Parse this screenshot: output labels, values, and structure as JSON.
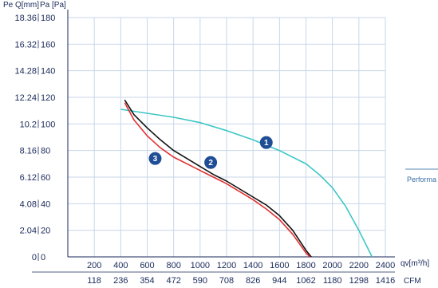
{
  "chart_data": {
    "type": "line",
    "title": "",
    "y_axis_title_left": "Pe Q[mm]",
    "y_axis_title_right": "Pa [Pa]",
    "x_unit_label": "qv[m³/h]",
    "x_secondary_unit_label": "CFM",
    "x_ticks_primary": [
      "200",
      "400",
      "600",
      "800",
      "1000",
      "1200",
      "1400",
      "1600",
      "1800",
      "2000",
      "2200",
      "2400"
    ],
    "x_ticks_secondary": [
      "118",
      "236",
      "354",
      "472",
      "590",
      "708",
      "826",
      "944",
      "1062",
      "1180",
      "1298",
      "1416"
    ],
    "y_ticks_mm": [
      "18.36",
      "16.32",
      "14.28",
      "12.24",
      "10.2",
      "8.16",
      "6.12",
      "4.08",
      "2.04",
      "0"
    ],
    "y_ticks_pa": [
      "180",
      "160",
      "140",
      "120",
      "100",
      "80",
      "60",
      "40",
      "20",
      "0"
    ],
    "xlim": [
      0,
      2400
    ],
    "ylim": [
      0,
      180
    ],
    "grid": true,
    "legend_partial_text": "Performa",
    "series": [
      {
        "marker": "1",
        "color": "#3cc6c6",
        "x": [
          400,
          600,
          800,
          1000,
          1200,
          1400,
          1600,
          1800,
          1900,
          2000,
          2100,
          2200,
          2300
        ],
        "y": [
          111,
          108,
          105,
          101,
          95,
          88,
          80,
          70,
          62,
          52,
          38,
          20,
          0
        ]
      },
      {
        "marker": "2",
        "color": "#111111",
        "x": [
          430,
          500,
          600,
          700,
          800,
          900,
          1000,
          1100,
          1200,
          1300,
          1400,
          1500,
          1600,
          1700,
          1800,
          1840
        ],
        "y": [
          118,
          107,
          97,
          88,
          80,
          74,
          68,
          62,
          57,
          51,
          45,
          39,
          31,
          20,
          5,
          0
        ]
      },
      {
        "marker": "3",
        "color": "#e03030",
        "x": [
          430,
          500,
          600,
          700,
          800,
          900,
          1000,
          1100,
          1200,
          1300,
          1400,
          1500,
          1600,
          1700,
          1800,
          1830
        ],
        "y": [
          116,
          103,
          91,
          82,
          75,
          70,
          65,
          60,
          55,
          49,
          43,
          36,
          28,
          17,
          3,
          0
        ]
      }
    ],
    "markers": [
      {
        "label": "1",
        "x": 1500,
        "y": 86
      },
      {
        "label": "2",
        "x": 1080,
        "y": 71
      },
      {
        "label": "3",
        "x": 660,
        "y": 74
      }
    ]
  }
}
